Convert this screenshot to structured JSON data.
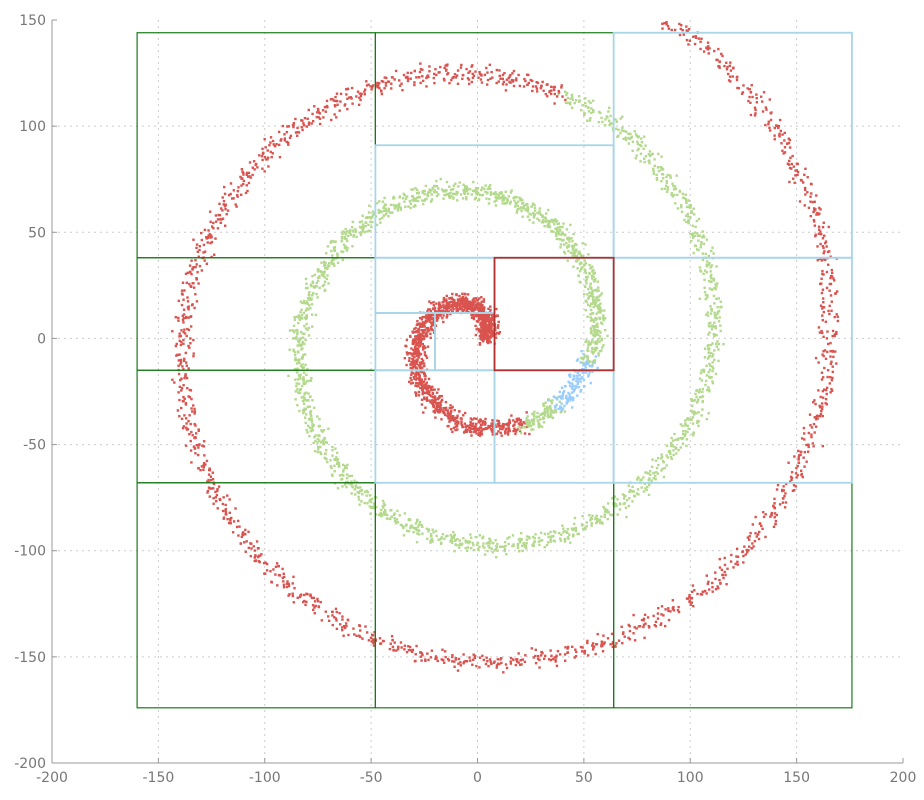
{
  "chart_data": {
    "type": "scatter",
    "title": "",
    "xlabel": "",
    "ylabel": "",
    "xlim": [
      -200,
      200
    ],
    "ylim": [
      -200,
      150
    ],
    "grid": true,
    "legend": "none",
    "xticks": [
      "-200",
      "-150",
      "-100",
      "-50",
      "0",
      "50",
      "100",
      "150",
      "200"
    ],
    "yticks": [
      "-200",
      "-150",
      "-100",
      "-50",
      "0",
      "50",
      "100",
      "150"
    ],
    "colors": {
      "red": "#d9534f",
      "green": "#b3d98c",
      "blue": "#99ccff",
      "dark_green_box": "#1a7a1a",
      "light_blue_box": "#a8d5e8",
      "dark_red_box": "#b03030"
    },
    "spiral": {
      "description_free": true,
      "center": [
        0,
        0
      ],
      "theta_start": 0.35,
      "theta_end": 20.05,
      "theta_green_start": 5.2,
      "theta_green_end": 13.8,
      "theta_blue_start": 5.6,
      "theta_blue_end": 6.1,
      "theta_blue2_start": 12.2,
      "theta_blue2_end": 12.9,
      "thickness": 4.5
    },
    "boxes": [
      {
        "x0": -160,
        "x1": -48,
        "y0": 38,
        "y1": 144,
        "color": "dark_green_box"
      },
      {
        "x0": -48,
        "x1": 64,
        "y0": 91,
        "y1": 144,
        "color": "dark_green_box"
      },
      {
        "x0": -160,
        "x1": -48,
        "y0": -15,
        "y1": 38,
        "color": "dark_green_box"
      },
      {
        "x0": -160,
        "x1": -48,
        "y0": -68,
        "y1": -15,
        "color": "dark_green_box"
      },
      {
        "x0": -160,
        "x1": -48,
        "y0": -174,
        "y1": -68,
        "color": "dark_green_box"
      },
      {
        "x0": -48,
        "x1": 64,
        "y0": -174,
        "y1": -68,
        "color": "dark_green_box"
      },
      {
        "x0": 64,
        "x1": 176,
        "y0": -174,
        "y1": -68,
        "color": "dark_green_box"
      },
      {
        "x0": 64,
        "x1": 176,
        "y0": 38,
        "y1": 144,
        "color": "light_blue_box"
      },
      {
        "x0": -48,
        "x1": 64,
        "y0": 38,
        "y1": 91,
        "color": "light_blue_box"
      },
      {
        "x0": 64,
        "x1": 176,
        "y0": -68,
        "y1": 38,
        "color": "light_blue_box"
      },
      {
        "x0": -48,
        "x1": 8,
        "y0": -68,
        "y1": -15,
        "color": "light_blue_box"
      },
      {
        "x0": 8,
        "x1": 64,
        "y0": -68,
        "y1": -15,
        "color": "light_blue_box"
      },
      {
        "x0": -48,
        "x1": 8,
        "y0": 12,
        "y1": 38,
        "color": "light_blue_box"
      },
      {
        "x0": -48,
        "x1": -20,
        "y0": -15,
        "y1": 12,
        "color": "light_blue_box"
      },
      {
        "x0": -20,
        "x1": 8,
        "y0": -15,
        "y1": 12,
        "color": "light_blue_box"
      },
      {
        "x0": 8,
        "x1": 64,
        "y0": -15,
        "y1": 38,
        "color": "dark_red_box"
      }
    ]
  }
}
